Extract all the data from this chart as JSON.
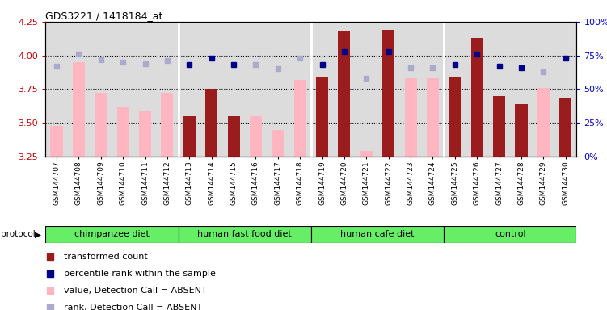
{
  "title": "GDS3221 / 1418184_at",
  "samples": [
    "GSM144707",
    "GSM144708",
    "GSM144709",
    "GSM144710",
    "GSM144711",
    "GSM144712",
    "GSM144713",
    "GSM144714",
    "GSM144715",
    "GSM144716",
    "GSM144717",
    "GSM144718",
    "GSM144719",
    "GSM144720",
    "GSM144721",
    "GSM144722",
    "GSM144723",
    "GSM144724",
    "GSM144725",
    "GSM144726",
    "GSM144727",
    "GSM144728",
    "GSM144729",
    "GSM144730"
  ],
  "transformed_count": [
    3.48,
    3.95,
    3.72,
    3.62,
    3.59,
    3.72,
    3.55,
    3.75,
    3.55,
    3.55,
    3.45,
    3.82,
    3.84,
    4.18,
    3.29,
    4.19,
    3.83,
    3.83,
    3.84,
    4.13,
    3.7,
    3.64,
    3.76,
    3.68
  ],
  "percentile_rank": [
    67,
    76,
    72,
    70,
    69,
    71,
    68,
    73,
    68,
    68,
    65,
    73,
    68,
    78,
    58,
    78,
    66,
    66,
    68,
    76,
    67,
    66,
    63,
    73
  ],
  "detection_call": [
    "A",
    "A",
    "A",
    "A",
    "A",
    "A",
    "P",
    "P",
    "P",
    "A",
    "A",
    "A",
    "P",
    "P",
    "A",
    "P",
    "A",
    "A",
    "P",
    "P",
    "P",
    "P",
    "A",
    "P"
  ],
  "groups": [
    {
      "label": "chimpanzee diet",
      "start": 0,
      "end": 5
    },
    {
      "label": "human fast food diet",
      "start": 6,
      "end": 11
    },
    {
      "label": "human cafe diet",
      "start": 12,
      "end": 17
    },
    {
      "label": "control",
      "start": 18,
      "end": 23
    }
  ],
  "ylim_left": [
    3.25,
    4.25
  ],
  "ylim_right": [
    0,
    100
  ],
  "yticks_left": [
    3.25,
    3.5,
    3.75,
    4.0,
    4.25
  ],
  "yticks_right": [
    0,
    25,
    50,
    75,
    100
  ],
  "hgrid_vals": [
    3.5,
    3.75,
    4.0
  ],
  "color_present_bar": "#9B1C1C",
  "color_absent_bar": "#FFB6C1",
  "color_present_dot": "#00008B",
  "color_absent_dot": "#AAAACC",
  "green_color": "#66EE66",
  "plot_bg": "#DCDCDC",
  "tick_left_color": "#CC0000",
  "tick_right_color": "#0000CC",
  "bar_width": 0.55,
  "legend_items": [
    {
      "color": "#9B1C1C",
      "label": "transformed count"
    },
    {
      "color": "#00008B",
      "label": "percentile rank within the sample"
    },
    {
      "color": "#FFB6C1",
      "label": "value, Detection Call = ABSENT"
    },
    {
      "color": "#AAAACC",
      "label": "rank, Detection Call = ABSENT"
    }
  ]
}
